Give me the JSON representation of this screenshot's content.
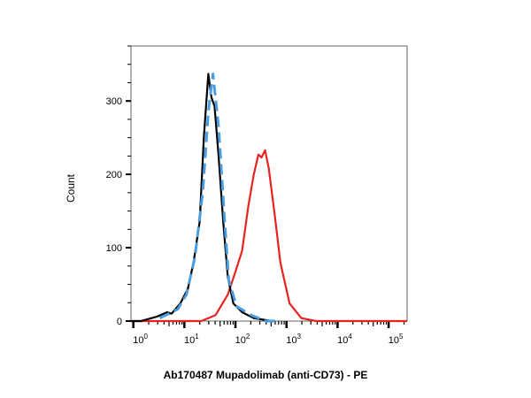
{
  "chart_data": {
    "type": "line",
    "title": "",
    "xlabel": "Ab170487 Mupadolimab (anti-CD73) - PE",
    "ylabel": "Count",
    "x_scale": "log",
    "xlim": [
      0.9,
      230000
    ],
    "ylim": [
      0,
      375
    ],
    "grid": false,
    "legend": "none",
    "x_ticks": [
      {
        "value": 1,
        "base": "10",
        "exp": "0"
      },
      {
        "value": 10,
        "base": "10",
        "exp": "1"
      },
      {
        "value": 100,
        "base": "10",
        "exp": "2"
      },
      {
        "value": 1000,
        "base": "10",
        "exp": "3"
      },
      {
        "value": 10000,
        "base": "10",
        "exp": "4"
      },
      {
        "value": 100000,
        "base": "10",
        "exp": "5"
      }
    ],
    "y_ticks": [
      {
        "value": 0,
        "label": "0"
      },
      {
        "value": 100,
        "label": "100"
      },
      {
        "value": 200,
        "label": "200"
      },
      {
        "value": 300,
        "label": "300"
      }
    ],
    "series": [
      {
        "color": "#e8231e",
        "style": "solid",
        "x": [
          0.9,
          21.4,
          40.7,
          70.8,
          105,
          135,
          178,
          229,
          282,
          324,
          380,
          447,
          589,
          759,
          1148,
          1950,
          3802,
          230000
        ],
        "y": [
          0,
          0,
          8,
          36,
          72,
          96,
          156,
          200,
          227,
          223,
          233,
          209,
          144,
          80,
          24,
          4,
          0,
          0
        ]
      },
      {
        "color": "#000000",
        "style": "solid",
        "x": [
          0.9,
          1.4,
          2.9,
          4.6,
          5.6,
          8.3,
          11.7,
          15.1,
          20,
          24,
          29.5,
          33.9,
          38.9,
          46.8,
          57.5,
          70.8,
          91,
          135,
          229,
          513
        ],
        "y": [
          0,
          0,
          6,
          12,
          10,
          24,
          44,
          80,
          136,
          250,
          337,
          305,
          293,
          225,
          136,
          60,
          24,
          12,
          4,
          0
        ]
      },
      {
        "color": "#4a9ee0",
        "style": "dashed",
        "x": [
          3.3,
          7.4,
          11,
          16.2,
          22.9,
          29.5,
          36.3,
          46.8,
          61.7,
          74.1,
          105,
          204,
          398,
          700
        ],
        "y": [
          4,
          16,
          36,
          88,
          176,
          285,
          337,
          265,
          136,
          56,
          20,
          8,
          0,
          0
        ]
      }
    ]
  }
}
